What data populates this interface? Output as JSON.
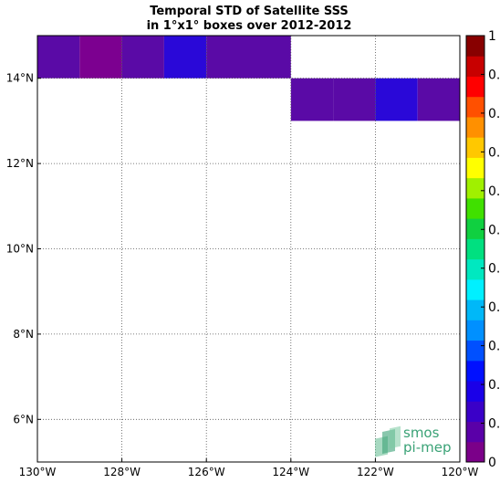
{
  "chart_data": {
    "type": "heatmap",
    "title": "Temporal STD of Satellite SSS",
    "subtitle": "in 1°x1° boxes over 2012-2012",
    "xlim": [
      -130,
      -120
    ],
    "ylim": [
      5,
      15
    ],
    "x_ticks": [
      -130,
      -128,
      -126,
      -124,
      -122,
      -120
    ],
    "x_tick_labels": [
      "130°W",
      "128°W",
      "126°W",
      "124°W",
      "122°W",
      "120°W"
    ],
    "y_ticks": [
      6,
      8,
      10,
      12,
      14
    ],
    "y_tick_labels": [
      "6°N",
      "8°N",
      "10°N",
      "12°N",
      "14°N"
    ],
    "grid": true,
    "colorbar": {
      "range": [
        0,
        1
      ],
      "levels": 20,
      "colors": [
        "#7b0089",
        "#5a00a8",
        "#3a00c8",
        "#1a00e8",
        "#0010ff",
        "#0050ff",
        "#0090ff",
        "#00b8f8",
        "#00f0ff",
        "#00e8c0",
        "#00e080",
        "#10d040",
        "#40e000",
        "#a0f000",
        "#ffff00",
        "#ffc800",
        "#ff9000",
        "#ff5000",
        "#ff0000",
        "#c80000",
        "#880000"
      ],
      "tick_labels": [
        "1",
        "0.",
        "0.",
        "0.",
        "0.",
        "0.",
        "0.",
        "0.",
        "0.",
        "0.",
        "0.",
        "0"
      ]
    },
    "cells": [
      {
        "lon": -130,
        "lat": 14,
        "color": "#5a0aa6"
      },
      {
        "lon": -129,
        "lat": 14,
        "color": "#7c0090"
      },
      {
        "lon": -128,
        "lat": 14,
        "color": "#5a0aa6"
      },
      {
        "lon": -127,
        "lat": 14,
        "color": "#2a08d8"
      },
      {
        "lon": -126,
        "lat": 14,
        "color": "#5a0aa6"
      },
      {
        "lon": -125,
        "lat": 14,
        "color": "#5a0aa6"
      },
      {
        "lon": -124,
        "lat": 13,
        "color": "#5a0aa6"
      },
      {
        "lon": -123,
        "lat": 13,
        "color": "#5a0aa6"
      },
      {
        "lon": -122,
        "lat": 13,
        "color": "#2a08d8"
      },
      {
        "lon": -121,
        "lat": 13,
        "color": "#5a0aa6"
      }
    ]
  },
  "logo": {
    "line1": "smos",
    "line2": "pi-mep"
  }
}
